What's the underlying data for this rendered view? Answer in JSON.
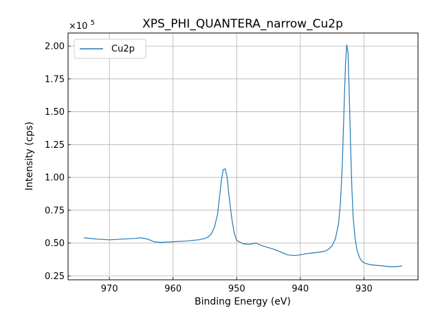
{
  "chart_data": {
    "type": "line",
    "title": "XPS_PHI_QUANTERA_narrow_Cu2p",
    "xlabel": "Binding Energy (eV)",
    "ylabel": "Intensity (cps)",
    "y_offset_label_base": "×10",
    "y_offset_label_exp": "5",
    "y_scale": 100000,
    "x_reversed": true,
    "xlim": [
      976.5,
      921.5
    ],
    "ylim": [
      0.22,
      2.1
    ],
    "x_ticks": [
      970,
      960,
      950,
      940,
      930
    ],
    "x_tick_labels": [
      "970",
      "960",
      "950",
      "940",
      "930"
    ],
    "y_ticks": [
      0.25,
      0.5,
      0.75,
      1.0,
      1.25,
      1.5,
      1.75,
      2.0
    ],
    "y_tick_labels": [
      "0.25",
      "0.50",
      "0.75",
      "1.00",
      "1.25",
      "1.50",
      "1.75",
      "2.00"
    ],
    "grid": true,
    "legend_position": "top-left",
    "series": [
      {
        "name": "Cu2p",
        "color": "#1f77b4",
        "x": [
          974,
          972,
          970,
          968,
          966,
          965,
          964,
          963,
          962,
          960,
          958,
          957,
          956,
          955,
          954.5,
          954,
          953.5,
          953,
          952.7,
          952.4,
          952.1,
          951.8,
          951.5,
          951.2,
          950.8,
          950.4,
          950,
          949,
          948,
          947,
          946,
          945,
          944,
          943,
          942,
          941,
          940,
          939,
          938,
          937,
          936,
          935.5,
          935,
          934.5,
          934,
          933.7,
          933.4,
          933.1,
          932.9,
          932.7,
          932.5,
          932.3,
          932.1,
          931.9,
          931.7,
          931.4,
          931.1,
          930.7,
          930.3,
          929.8,
          929,
          928,
          927,
          926,
          925,
          924
        ],
        "values": [
          0.54,
          0.53,
          0.525,
          0.53,
          0.535,
          0.54,
          0.53,
          0.51,
          0.505,
          0.51,
          0.515,
          0.52,
          0.525,
          0.535,
          0.545,
          0.57,
          0.62,
          0.72,
          0.85,
          0.98,
          1.06,
          1.065,
          1.0,
          0.86,
          0.7,
          0.58,
          0.52,
          0.495,
          0.49,
          0.5,
          0.48,
          0.465,
          0.45,
          0.43,
          0.41,
          0.405,
          0.41,
          0.42,
          0.425,
          0.43,
          0.44,
          0.455,
          0.48,
          0.53,
          0.64,
          0.8,
          1.1,
          1.55,
          1.86,
          2.01,
          1.95,
          1.62,
          1.25,
          0.92,
          0.7,
          0.54,
          0.45,
          0.39,
          0.36,
          0.345,
          0.335,
          0.33,
          0.325,
          0.32,
          0.32,
          0.325
        ]
      }
    ]
  }
}
